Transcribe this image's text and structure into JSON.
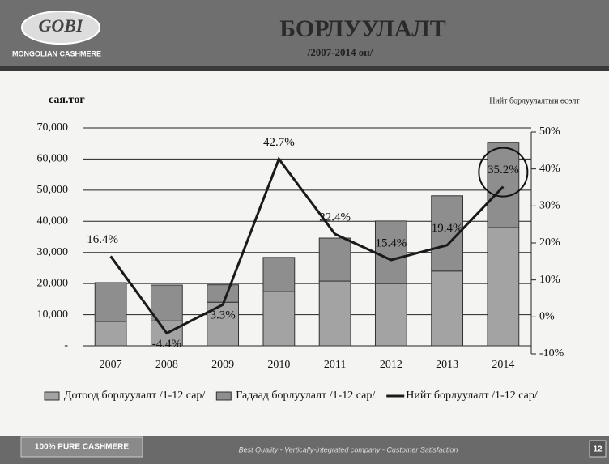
{
  "header": {
    "logo": "GOBI",
    "brand": "MONGOLIAN CASHMERE",
    "title": "БОРЛУУЛАЛТ",
    "subtitle": "/2007-2014 он/"
  },
  "footer": {
    "left": "100% PURE CASHMERE",
    "center": "Best Quality  -  Vertically-integrated company  -  Customer Satisfaction",
    "page": "12"
  },
  "chart_data": {
    "type": "bar-line",
    "y_label": "сая.төг",
    "y2_label": "Нийт борлуулалтын өсөлт",
    "categories": [
      "2007",
      "2008",
      "2009",
      "2010",
      "2011",
      "2012",
      "2013",
      "2014"
    ],
    "series": [
      {
        "name": "Дотоод борлуулалт /1-12 сар/",
        "color": "#a3a3a3",
        "values": [
          7800,
          8000,
          14000,
          17400,
          20800,
          20000,
          24000,
          38000
        ]
      },
      {
        "name": "Гадаад борлуулалт /1-12 сар/",
        "color": "#8e8e8e",
        "values": [
          12500,
          11500,
          5600,
          11000,
          13800,
          20100,
          24200,
          27400
        ]
      },
      {
        "name": "Нийт борлуулалт /1-12 сар/",
        "color": "#1a1a1a",
        "axis": "y2",
        "type": "line",
        "values": [
          16.4,
          -4.4,
          3.3,
          42.7,
          22.4,
          15.4,
          19.4,
          35.2
        ],
        "value_labels": [
          "16.4%",
          "-4.4%",
          "3.3%",
          "42.7%",
          "22.4%",
          "15.4%",
          "19.4%",
          "35.2%"
        ]
      }
    ],
    "ylim": [
      0,
      70000
    ],
    "yticks": [
      {
        "value": 0,
        "label": "-"
      },
      {
        "value": 10000,
        "label": "10,000"
      },
      {
        "value": 20000,
        "label": "20,000"
      },
      {
        "value": 30000,
        "label": "30,000"
      },
      {
        "value": 40000,
        "label": "40,000"
      },
      {
        "value": 50000,
        "label": "50,000"
      },
      {
        "value": 60000,
        "label": "60,000"
      },
      {
        "value": 70000,
        "label": "70,000"
      }
    ],
    "y2lim": [
      -10,
      50
    ],
    "y2ticks": [
      {
        "value": -10,
        "label": "-10%"
      },
      {
        "value": 0,
        "label": "0%"
      },
      {
        "value": 10,
        "label": "10%"
      },
      {
        "value": 20,
        "label": "20%"
      },
      {
        "value": 30,
        "label": "30%"
      },
      {
        "value": 40,
        "label": "40%"
      },
      {
        "value": 50,
        "label": "50%"
      }
    ],
    "grid": true,
    "legend": "bottom"
  }
}
